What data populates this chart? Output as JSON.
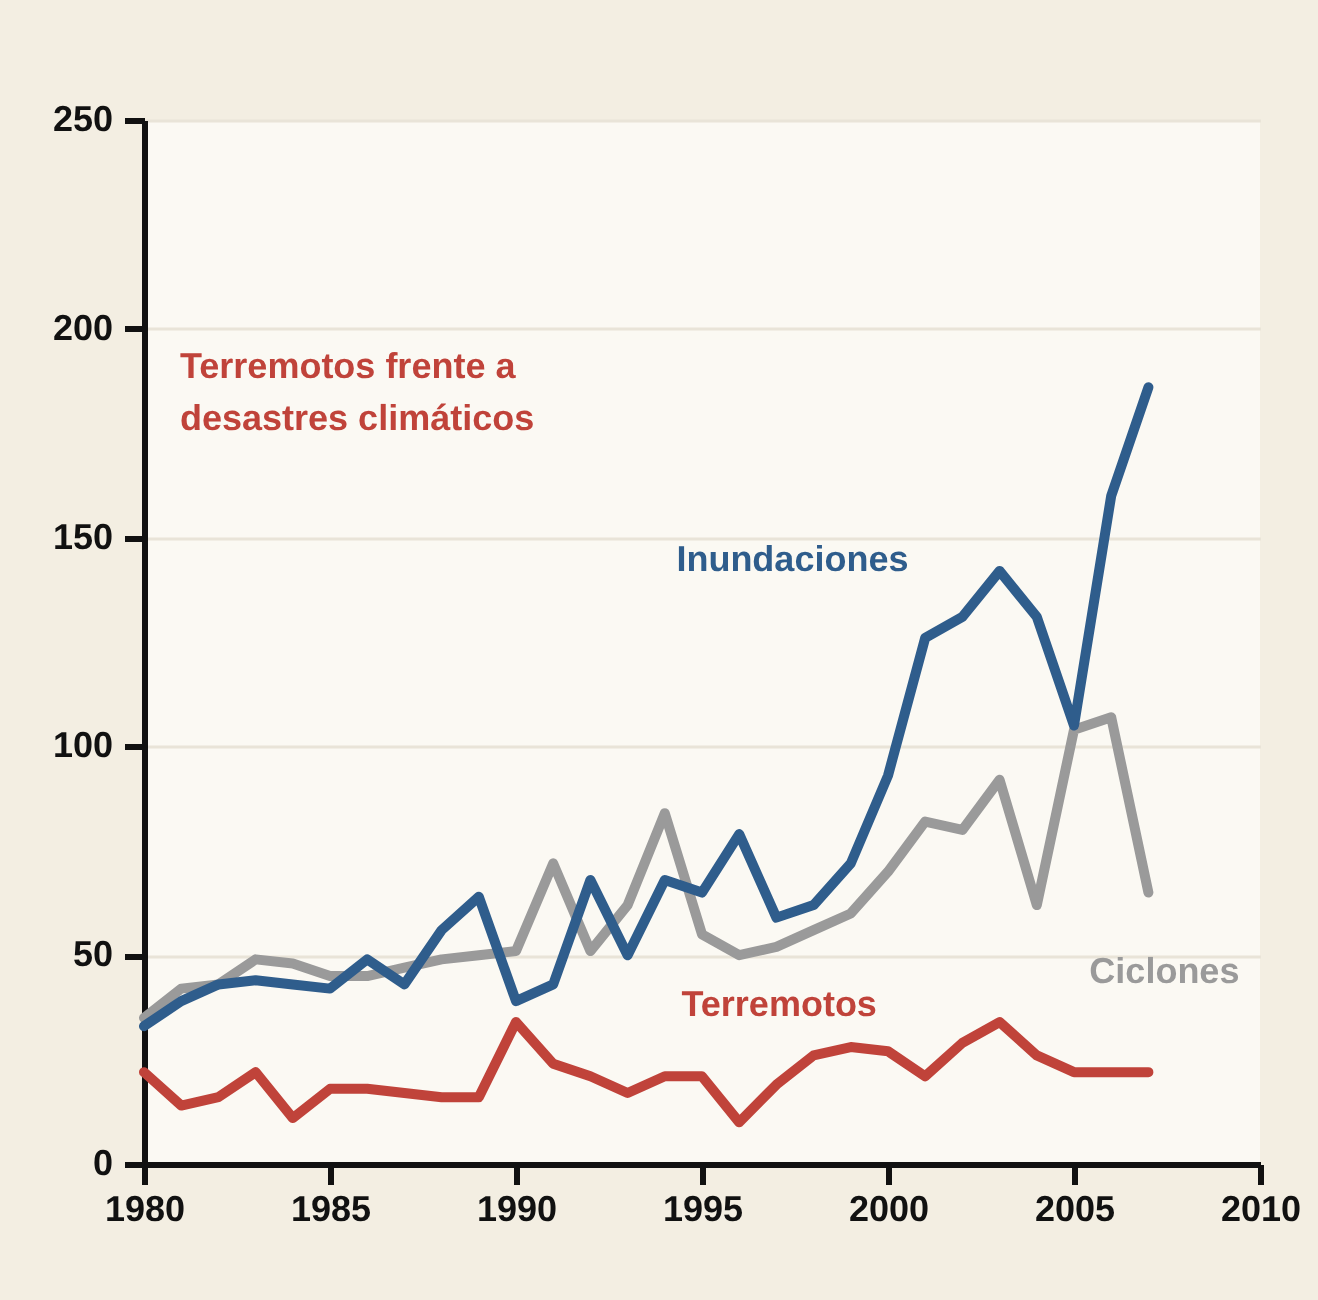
{
  "chart_data": {
    "type": "line",
    "title": "Terremotos frente a desastres climáticos",
    "x": [
      1980,
      1981,
      1982,
      1983,
      1984,
      1985,
      1986,
      1987,
      1988,
      1989,
      1990,
      1991,
      1992,
      1993,
      1994,
      1995,
      1996,
      1997,
      1998,
      1999,
      2000,
      2001,
      2002,
      2003,
      2004,
      2005,
      2006,
      2007
    ],
    "series": [
      {
        "name": "Ciclones",
        "color": "#9a9a9a",
        "values": [
          35,
          42,
          43,
          49,
          48,
          45,
          45,
          47,
          49,
          50,
          51,
          72,
          51,
          62,
          84,
          55,
          50,
          52,
          56,
          60,
          70,
          82,
          80,
          92,
          62,
          104,
          107,
          65
        ]
      },
      {
        "name": "Inundaciones",
        "color": "#2f5d8c",
        "values": [
          33,
          39,
          43,
          44,
          43,
          42,
          49,
          43,
          56,
          64,
          39,
          43,
          68,
          50,
          68,
          65,
          79,
          59,
          62,
          72,
          93,
          126,
          131,
          142,
          131,
          105,
          160,
          186
        ]
      },
      {
        "name": "Terremotos",
        "color": "#c0433a",
        "values": [
          22,
          14,
          16,
          22,
          11,
          18,
          18,
          17,
          16,
          16,
          34,
          24,
          21,
          17,
          21,
          21,
          10,
          19,
          26,
          28,
          27,
          21,
          29,
          34,
          26,
          22,
          22,
          22
        ]
      }
    ],
    "xlim": [
      1980,
      2010
    ],
    "xticks": [
      1980,
      1985,
      1990,
      1995,
      2000,
      2005,
      2010
    ],
    "ylim": [
      0,
      250
    ],
    "yticks": [
      0,
      50,
      100,
      150,
      200,
      250
    ],
    "grid": "y",
    "legend": false,
    "marker": "none",
    "line_style": "solid"
  }
}
